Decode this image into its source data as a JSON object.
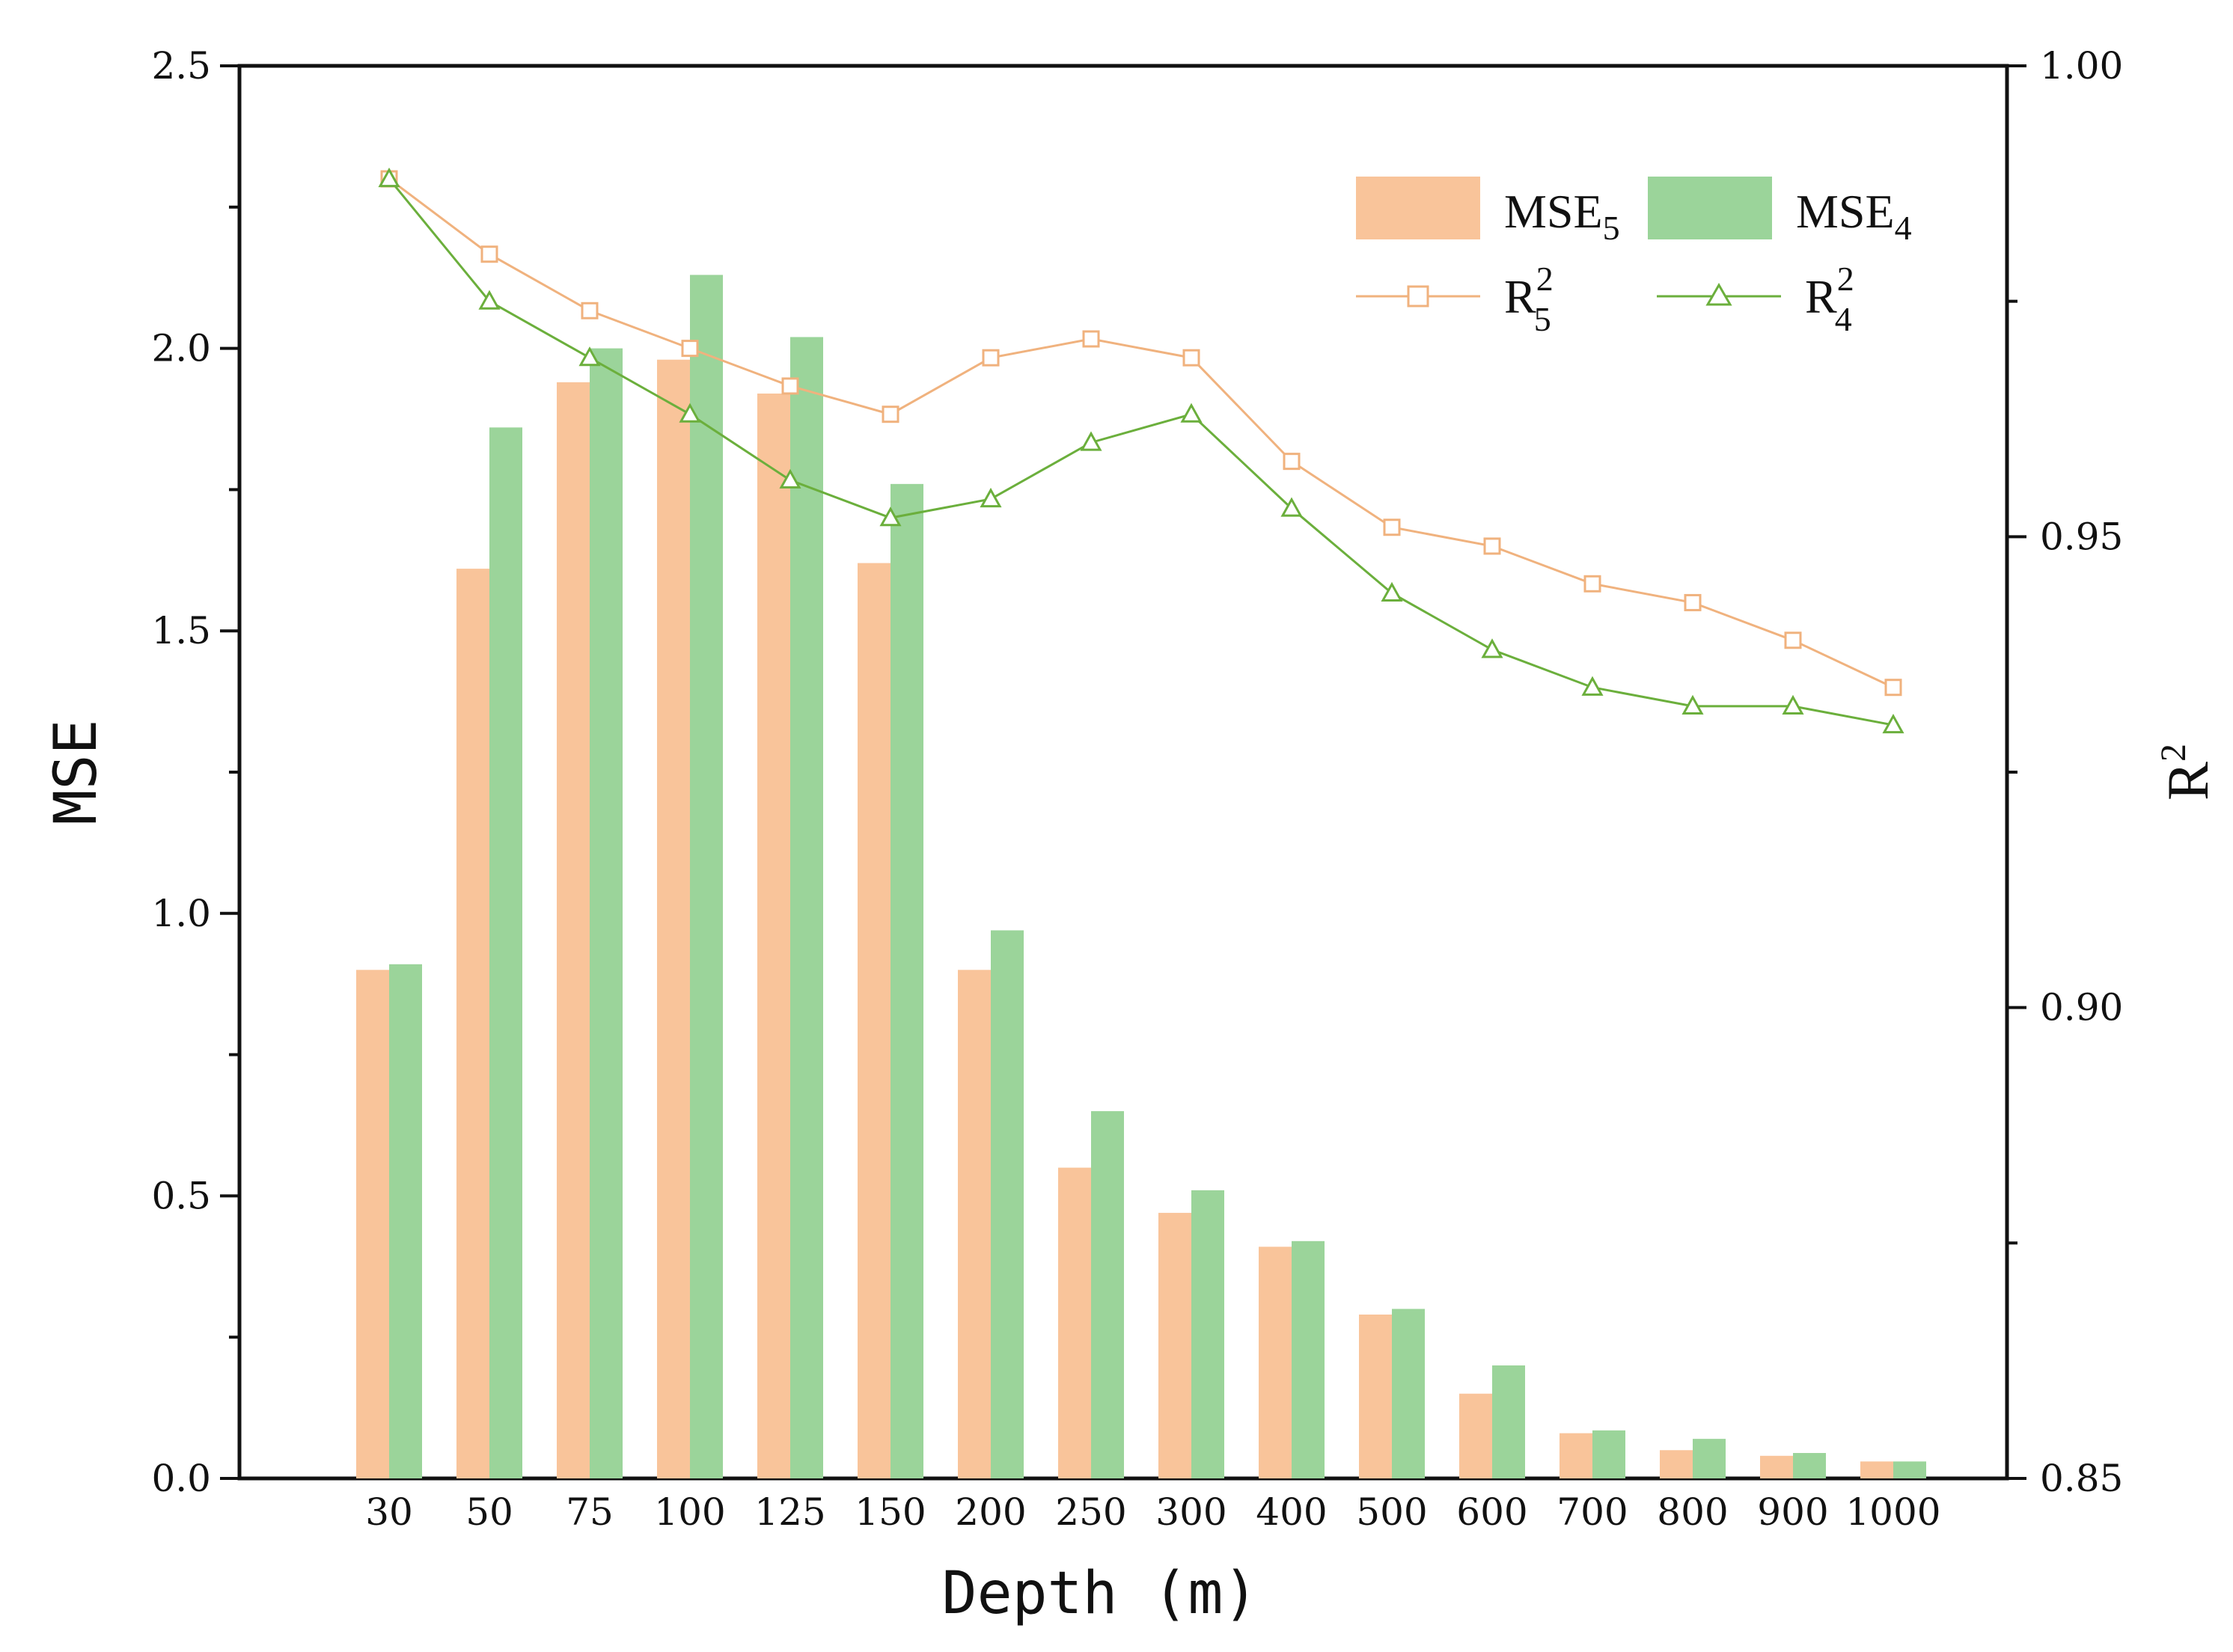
{
  "chart_data": {
    "type": "bar",
    "title": "",
    "xlabel": "Depth (m)",
    "ylabel": "MSE",
    "y2label": "R",
    "y2label_sup": "2",
    "categories": [
      "30",
      "50",
      "75",
      "100",
      "125",
      "150",
      "200",
      "250",
      "300",
      "400",
      "500",
      "600",
      "700",
      "800",
      "900",
      "1000"
    ],
    "ylim": [
      0,
      2.5
    ],
    "y2lim": [
      0.85,
      1.0
    ],
    "yticks": [
      "0.0",
      "0.5",
      "1.0",
      "1.5",
      "2.0",
      "2.5"
    ],
    "y2ticks": [
      "0.85",
      "0.90",
      "0.95",
      "1.00"
    ],
    "series": [
      {
        "name": "MSE5",
        "label_main": "MSE",
        "label_sub": "5",
        "kind": "bar",
        "axis": "left",
        "color": "#F9C49A",
        "values": [
          0.9,
          1.61,
          1.94,
          1.98,
          1.92,
          1.62,
          0.9,
          0.55,
          0.47,
          0.41,
          0.29,
          0.15,
          0.08,
          0.05,
          0.04,
          0.03
        ]
      },
      {
        "name": "MSE4",
        "label_main": "MSE",
        "label_sub": "4",
        "kind": "bar",
        "axis": "left",
        "color": "#9BD49A",
        "values": [
          0.91,
          1.86,
          2.0,
          2.13,
          2.02,
          1.76,
          0.97,
          0.65,
          0.51,
          0.42,
          0.3,
          0.2,
          0.085,
          0.07,
          0.045,
          0.03
        ]
      },
      {
        "name": "R2_5",
        "label_main": "R",
        "label_sup": "2",
        "label_sub": "5",
        "kind": "line",
        "marker": "square",
        "axis": "right",
        "color": "#F0B27E",
        "values": [
          0.988,
          0.98,
          0.974,
          0.97,
          0.966,
          0.963,
          0.969,
          0.971,
          0.969,
          0.958,
          0.951,
          0.949,
          0.945,
          0.943,
          0.939,
          0.934
        ]
      },
      {
        "name": "R2_4",
        "label_main": "R",
        "label_sup": "2",
        "label_sub": "4",
        "kind": "line",
        "marker": "triangle",
        "axis": "right",
        "color": "#6BAF3C",
        "values": [
          0.988,
          0.975,
          0.969,
          0.963,
          0.956,
          0.952,
          0.954,
          0.96,
          0.963,
          0.953,
          0.944,
          0.938,
          0.934,
          0.932,
          0.932,
          0.93
        ]
      }
    ],
    "legend_position": "top-right"
  }
}
